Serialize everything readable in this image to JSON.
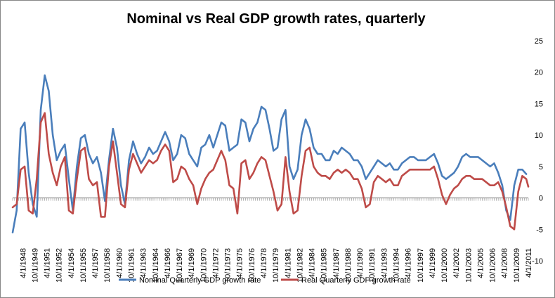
{
  "chart_data": {
    "type": "line",
    "title": "Nominal vs Real GDP growth rates, quarterly",
    "xlabel": "",
    "ylabel": "",
    "ylim": [
      -10,
      25
    ],
    "yticks": [
      -10,
      -5,
      0,
      5,
      10,
      15,
      20,
      25
    ],
    "grid": false,
    "legend_position": "bottom",
    "x_start": "1/1/1947",
    "x_end": "4/1/2011",
    "x_step": "quarter",
    "xtick_labels": [
      "4/1/1948",
      "10/1/1949",
      "4/1/1951",
      "10/1/1952",
      "4/1/1954",
      "10/1/1955",
      "4/1/1957",
      "10/1/1958",
      "4/1/1960",
      "10/1/1961",
      "4/1/1963",
      "10/1/1964",
      "4/1/1966",
      "10/1/1967",
      "4/1/1969",
      "10/1/1970",
      "4/1/1972",
      "10/1/1973",
      "4/1/1975",
      "10/1/1976",
      "4/1/1978",
      "10/1/1979",
      "4/1/1981",
      "10/1/1982",
      "4/1/1984",
      "10/1/1985",
      "4/1/1987",
      "10/1/1988",
      "4/1/1990",
      "10/1/1991",
      "4/1/1993",
      "10/1/1994",
      "4/1/1996",
      "10/1/1997",
      "4/1/1999",
      "10/1/2000",
      "4/1/2002",
      "10/1/2003",
      "4/1/2005",
      "10/1/2006",
      "4/1/2008",
      "10/1/2009",
      "4/1/2011"
    ],
    "anchor_years": [
      1947.0,
      1947.5,
      1948.0,
      1948.5,
      1949.0,
      1949.5,
      1950.0,
      1950.5,
      1951.0,
      1951.5,
      1952.0,
      1952.5,
      1953.0,
      1953.5,
      1954.0,
      1954.5,
      1955.0,
      1955.5,
      1956.0,
      1956.5,
      1957.0,
      1957.5,
      1958.0,
      1958.5,
      1959.0,
      1959.5,
      1960.0,
      1960.5,
      1961.0,
      1961.5,
      1962.0,
      1962.5,
      1963.0,
      1963.5,
      1964.0,
      1964.5,
      1965.0,
      1965.5,
      1966.0,
      1966.5,
      1967.0,
      1967.5,
      1968.0,
      1968.5,
      1969.0,
      1969.5,
      1970.0,
      1970.5,
      1971.0,
      1971.5,
      1972.0,
      1972.5,
      1973.0,
      1973.5,
      1974.0,
      1974.5,
      1975.0,
      1975.5,
      1976.0,
      1976.5,
      1977.0,
      1977.5,
      1978.0,
      1978.5,
      1979.0,
      1979.5,
      1980.0,
      1980.5,
      1981.0,
      1981.5,
      1982.0,
      1982.5,
      1983.0,
      1983.5,
      1984.0,
      1984.5,
      1985.0,
      1985.5,
      1986.0,
      1986.5,
      1987.0,
      1987.5,
      1988.0,
      1988.5,
      1989.0,
      1989.5,
      1990.0,
      1990.5,
      1991.0,
      1991.5,
      1992.0,
      1992.5,
      1993.0,
      1993.5,
      1994.0,
      1994.5,
      1995.0,
      1995.5,
      1996.0,
      1996.5,
      1997.0,
      1997.5,
      1998.0,
      1998.5,
      1999.0,
      1999.5,
      2000.0,
      2000.5,
      2001.0,
      2001.5,
      2002.0,
      2002.5,
      2003.0,
      2003.5,
      2004.0,
      2004.5,
      2005.0,
      2005.5,
      2006.0,
      2006.5,
      2007.0,
      2007.5,
      2008.0,
      2008.5,
      2009.0,
      2009.5,
      2010.0,
      2010.5,
      2011.0,
      2011.25
    ],
    "series": [
      {
        "name": "Nominal Quarterly GDP growth rate",
        "color": "#4a7ebb",
        "values": [
          -5.5,
          -2,
          11,
          12,
          4,
          -1,
          -3,
          14,
          19.5,
          17,
          10,
          6,
          7.5,
          8.5,
          3,
          -2,
          5,
          9.5,
          10,
          7,
          5.5,
          6.5,
          4,
          -0.5,
          6,
          11,
          8,
          2,
          -1,
          6,
          9,
          7,
          5.5,
          6.5,
          8,
          7,
          7.5,
          9,
          10.5,
          9,
          6,
          7,
          10,
          9.5,
          7,
          6,
          5,
          8,
          8.5,
          10,
          8,
          10,
          12,
          11.5,
          7.5,
          8,
          8.5,
          12.5,
          12,
          9,
          11,
          12,
          14.5,
          14,
          11,
          7.5,
          8,
          12.5,
          14,
          5,
          3,
          4.5,
          10,
          12.5,
          11,
          8,
          7,
          7,
          6,
          6,
          7.5,
          7,
          8,
          7.5,
          7,
          6,
          6,
          5,
          3,
          4,
          5,
          6,
          5.5,
          5,
          5.5,
          4.5,
          4.5,
          5.5,
          6,
          6.5,
          6.5,
          6,
          6,
          6,
          6.5,
          7,
          5.5,
          3.5,
          3,
          3.5,
          4,
          5,
          6.5,
          7,
          6.5,
          6.5,
          6.5,
          6,
          5.5,
          5,
          5.5,
          4,
          2,
          -2,
          -3.5,
          2,
          4.5,
          4.5,
          3.8
        ]
      },
      {
        "name": "Real Quarterly GDP growth rate",
        "color": "#be4b48",
        "values": [
          -1.5,
          -1,
          4.5,
          5,
          -2,
          -2.5,
          3,
          12,
          13.5,
          7,
          4,
          2,
          5,
          6.5,
          -2,
          -2.5,
          3,
          7.5,
          8,
          3,
          2,
          2.5,
          -3,
          -3,
          5,
          9,
          4,
          -1,
          -1.5,
          4.5,
          7,
          5.5,
          4,
          5,
          6,
          5.5,
          6,
          7.5,
          8.5,
          7.5,
          2.5,
          3,
          5,
          4.5,
          3,
          2,
          -1,
          1.5,
          3,
          4,
          4.5,
          6,
          7.5,
          6,
          2,
          1.5,
          -2.5,
          5.5,
          6,
          3,
          4,
          5.5,
          6.5,
          6,
          3.5,
          1,
          -2,
          -1,
          6.5,
          1,
          -2.5,
          -2,
          3.5,
          7.5,
          8,
          5,
          4,
          3.5,
          3.5,
          3,
          4,
          4.5,
          4,
          4.5,
          4,
          3,
          3,
          1.5,
          -1.5,
          -1,
          2.5,
          3.5,
          3,
          2.5,
          3,
          2,
          2,
          3.5,
          4,
          4.5,
          4.5,
          4.5,
          4.5,
          4.5,
          4.5,
          5,
          3,
          0.5,
          -1,
          0.5,
          1.5,
          2,
          3,
          3.5,
          3.5,
          3,
          3,
          3,
          2.5,
          2,
          2,
          2.5,
          1,
          -1.5,
          -4.5,
          -5,
          1,
          3.5,
          3,
          1.8
        ]
      }
    ]
  }
}
